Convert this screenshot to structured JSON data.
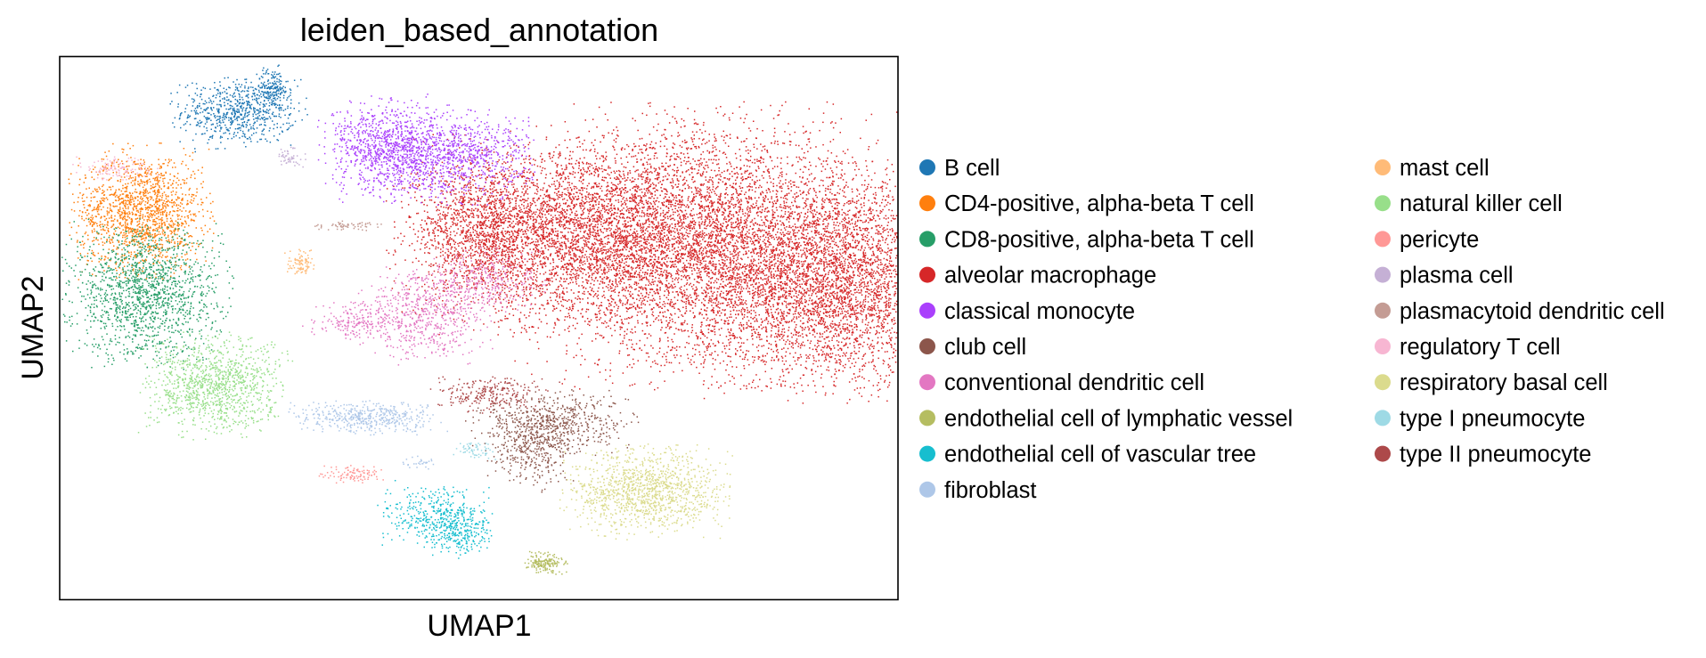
{
  "chart_data": {
    "type": "scatter",
    "title": "leiden_based_annotation",
    "xlabel": "UMAP1",
    "ylabel": "UMAP2",
    "grid": false,
    "ticks": false,
    "legend_placement": "right",
    "legend_columns": 2,
    "series": [
      {
        "name": "B cell",
        "color": "#1f77b4",
        "clusters": [
          {
            "cx": 2.2,
            "cy": 8.55,
            "sx": 0.35,
            "sy": 0.28,
            "n": 700
          },
          {
            "cx": 2.6,
            "cy": 8.95,
            "sx": 0.1,
            "sy": 0.18,
            "n": 150
          }
        ]
      },
      {
        "name": "CD4-positive, alpha-beta T cell",
        "color": "#ff7f0e",
        "clusters": [
          {
            "cx": 1.0,
            "cy": 6.8,
            "sx": 0.38,
            "sy": 0.5,
            "n": 1500
          }
        ]
      },
      {
        "name": "CD8-positive, alpha-beta T cell",
        "color": "#279e68",
        "clusters": [
          {
            "cx": 1.05,
            "cy": 5.35,
            "sx": 0.45,
            "sy": 0.55,
            "n": 1500
          }
        ]
      },
      {
        "name": "alveolar macrophage",
        "color": "#d62728",
        "clusters": [
          {
            "cx": 6.4,
            "cy": 6.4,
            "sx": 1.0,
            "sy": 0.75,
            "n": 3500
          },
          {
            "cx": 7.9,
            "cy": 6.2,
            "sx": 1.1,
            "sy": 1.05,
            "n": 4500
          },
          {
            "cx": 9.6,
            "cy": 5.6,
            "sx": 0.85,
            "sy": 0.9,
            "n": 4000
          },
          {
            "cx": 5.2,
            "cy": 6.5,
            "sx": 0.4,
            "sy": 0.55,
            "n": 1000
          }
        ]
      },
      {
        "name": "classical monocyte",
        "color": "#aa40fc",
        "clusters": [
          {
            "cx": 4.0,
            "cy": 7.9,
            "sx": 0.35,
            "sy": 0.4,
            "n": 900
          },
          {
            "cx": 4.8,
            "cy": 7.75,
            "sx": 0.45,
            "sy": 0.35,
            "n": 900
          }
        ]
      },
      {
        "name": "club cell",
        "color": "#8c564b",
        "clusters": [
          {
            "cx": 6.05,
            "cy": 3.1,
            "sx": 0.45,
            "sy": 0.25,
            "n": 600
          },
          {
            "cx": 5.8,
            "cy": 2.6,
            "sx": 0.25,
            "sy": 0.3,
            "n": 300
          }
        ]
      },
      {
        "name": "conventional dendritic cell",
        "color": "#e377c2",
        "clusters": [
          {
            "cx": 4.5,
            "cy": 5.0,
            "sx": 0.35,
            "sy": 0.38,
            "n": 600
          },
          {
            "cx": 3.65,
            "cy": 4.9,
            "sx": 0.3,
            "sy": 0.15,
            "n": 200
          },
          {
            "cx": 5.2,
            "cy": 5.6,
            "sx": 0.35,
            "sy": 0.25,
            "n": 300
          }
        ]
      },
      {
        "name": "endothelial cell of lymphatic vessel",
        "color": "#b5bd61",
        "clusters": [
          {
            "cx": 5.95,
            "cy": 0.65,
            "sx": 0.12,
            "sy": 0.09,
            "n": 160
          }
        ]
      },
      {
        "name": "endothelial cell of vascular tree",
        "color": "#17becf",
        "clusters": [
          {
            "cx": 4.6,
            "cy": 1.5,
            "sx": 0.3,
            "sy": 0.25,
            "n": 350
          },
          {
            "cx": 4.9,
            "cy": 1.2,
            "sx": 0.18,
            "sy": 0.2,
            "n": 250
          }
        ]
      },
      {
        "name": "fibroblast",
        "color": "#aec7e8",
        "clusters": [
          {
            "cx": 3.8,
            "cy": 3.2,
            "sx": 0.42,
            "sy": 0.13,
            "n": 450
          },
          {
            "cx": 4.4,
            "cy": 2.4,
            "sx": 0.1,
            "sy": 0.05,
            "n": 30
          }
        ]
      },
      {
        "name": "mast cell",
        "color": "#ffbb78",
        "clusters": [
          {
            "cx": 2.95,
            "cy": 5.9,
            "sx": 0.08,
            "sy": 0.1,
            "n": 90
          }
        ]
      },
      {
        "name": "natural killer cell",
        "color": "#98df8a",
        "clusters": [
          {
            "cx": 1.9,
            "cy": 3.75,
            "sx": 0.4,
            "sy": 0.4,
            "n": 1100
          }
        ]
      },
      {
        "name": "pericyte",
        "color": "#ff9896",
        "clusters": [
          {
            "cx": 3.6,
            "cy": 2.2,
            "sx": 0.18,
            "sy": 0.07,
            "n": 100
          }
        ]
      },
      {
        "name": "plasma cell",
        "color": "#c5b0d5",
        "clusters": [
          {
            "cx": 2.8,
            "cy": 7.75,
            "sx": 0.1,
            "sy": 0.08,
            "n": 50
          }
        ]
      },
      {
        "name": "plasmacytoid dendritic cell",
        "color": "#c49c94",
        "clusters": [
          {
            "cx": 3.5,
            "cy": 6.55,
            "sx": 0.2,
            "sy": 0.04,
            "n": 60
          }
        ]
      },
      {
        "name": "regulatory T cell",
        "color": "#f7b6d2",
        "clusters": [
          {
            "cx": 0.7,
            "cy": 7.55,
            "sx": 0.22,
            "sy": 0.1,
            "n": 120
          }
        ]
      },
      {
        "name": "respiratory basal cell",
        "color": "#dbdb8d",
        "clusters": [
          {
            "cx": 7.2,
            "cy": 1.9,
            "sx": 0.45,
            "sy": 0.35,
            "n": 1200
          }
        ]
      },
      {
        "name": "type I pneumocyte",
        "color": "#9edae5",
        "clusters": [
          {
            "cx": 5.1,
            "cy": 2.6,
            "sx": 0.12,
            "sy": 0.07,
            "n": 60
          }
        ]
      },
      {
        "name": "type II pneumocyte",
        "color": "#ad494a",
        "clusters": [
          {
            "cx": 5.3,
            "cy": 3.6,
            "sx": 0.32,
            "sy": 0.14,
            "n": 250
          }
        ]
      }
    ],
    "xlim": [
      0,
      10.3
    ],
    "ylim": [
      0,
      9.5
    ]
  }
}
